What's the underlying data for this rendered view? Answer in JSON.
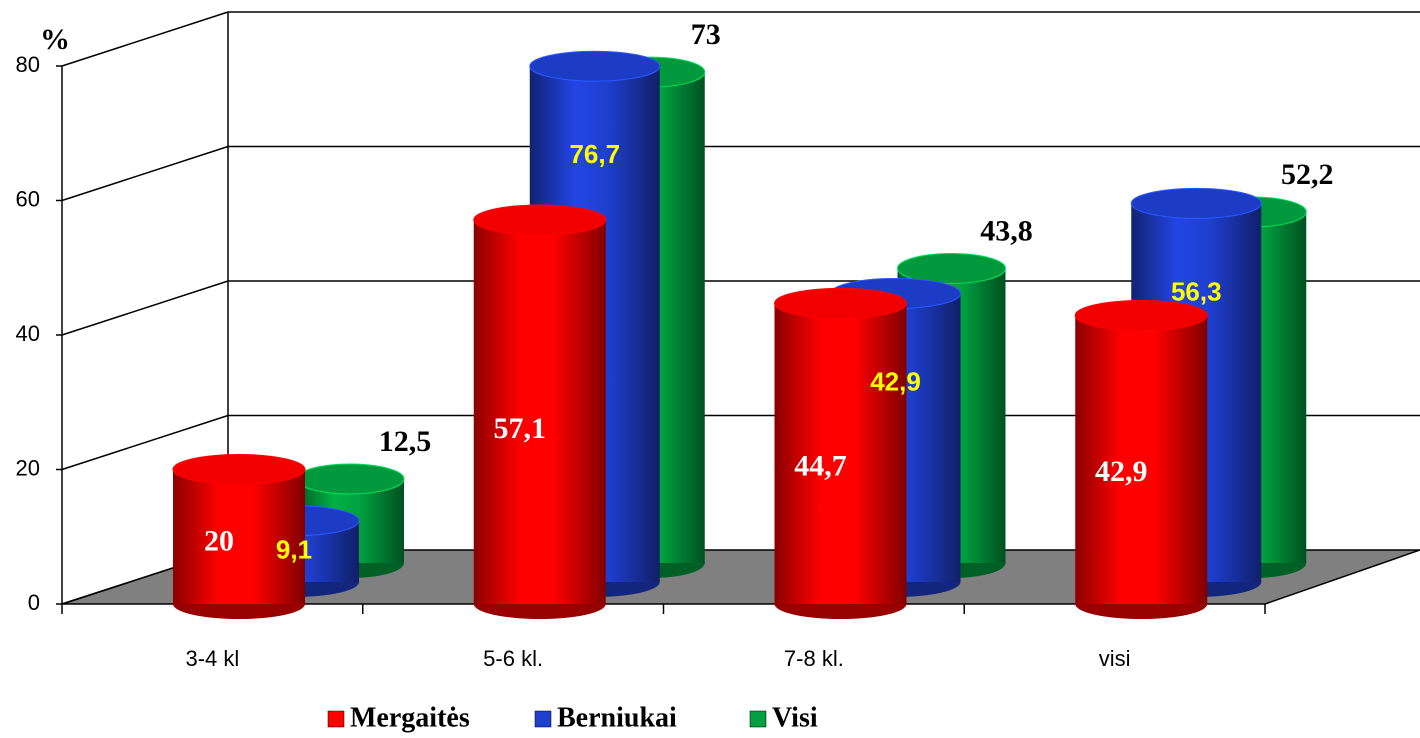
{
  "chart_data": {
    "type": "bar3d",
    "y_label": "%",
    "categories": [
      "3-4 kl",
      "5-6 kl.",
      "7-8 kl.",
      "visi"
    ],
    "series": [
      {
        "name": "Mergaitės",
        "color": "#ff0000",
        "values": [
          20,
          57.1,
          44.7,
          42.9
        ],
        "value_labels": [
          "20",
          "57,1",
          "44,7",
          "42,9"
        ]
      },
      {
        "name": "Berniukai",
        "color": "#1f3fd0",
        "values": [
          9.1,
          76.7,
          42.9,
          56.3
        ],
        "value_labels": [
          "9,1",
          "76,7",
          "42,9",
          "56,3"
        ]
      },
      {
        "name": "Visi",
        "color": "#00a040",
        "values": [
          12.5,
          73,
          43.8,
          52.2
        ],
        "value_labels": [
          "12,5",
          "73",
          "43,8",
          "52,2"
        ]
      }
    ],
    "ylim": [
      0,
      80
    ],
    "yticks": [
      0,
      20,
      40,
      60,
      80
    ],
    "grid": true
  }
}
